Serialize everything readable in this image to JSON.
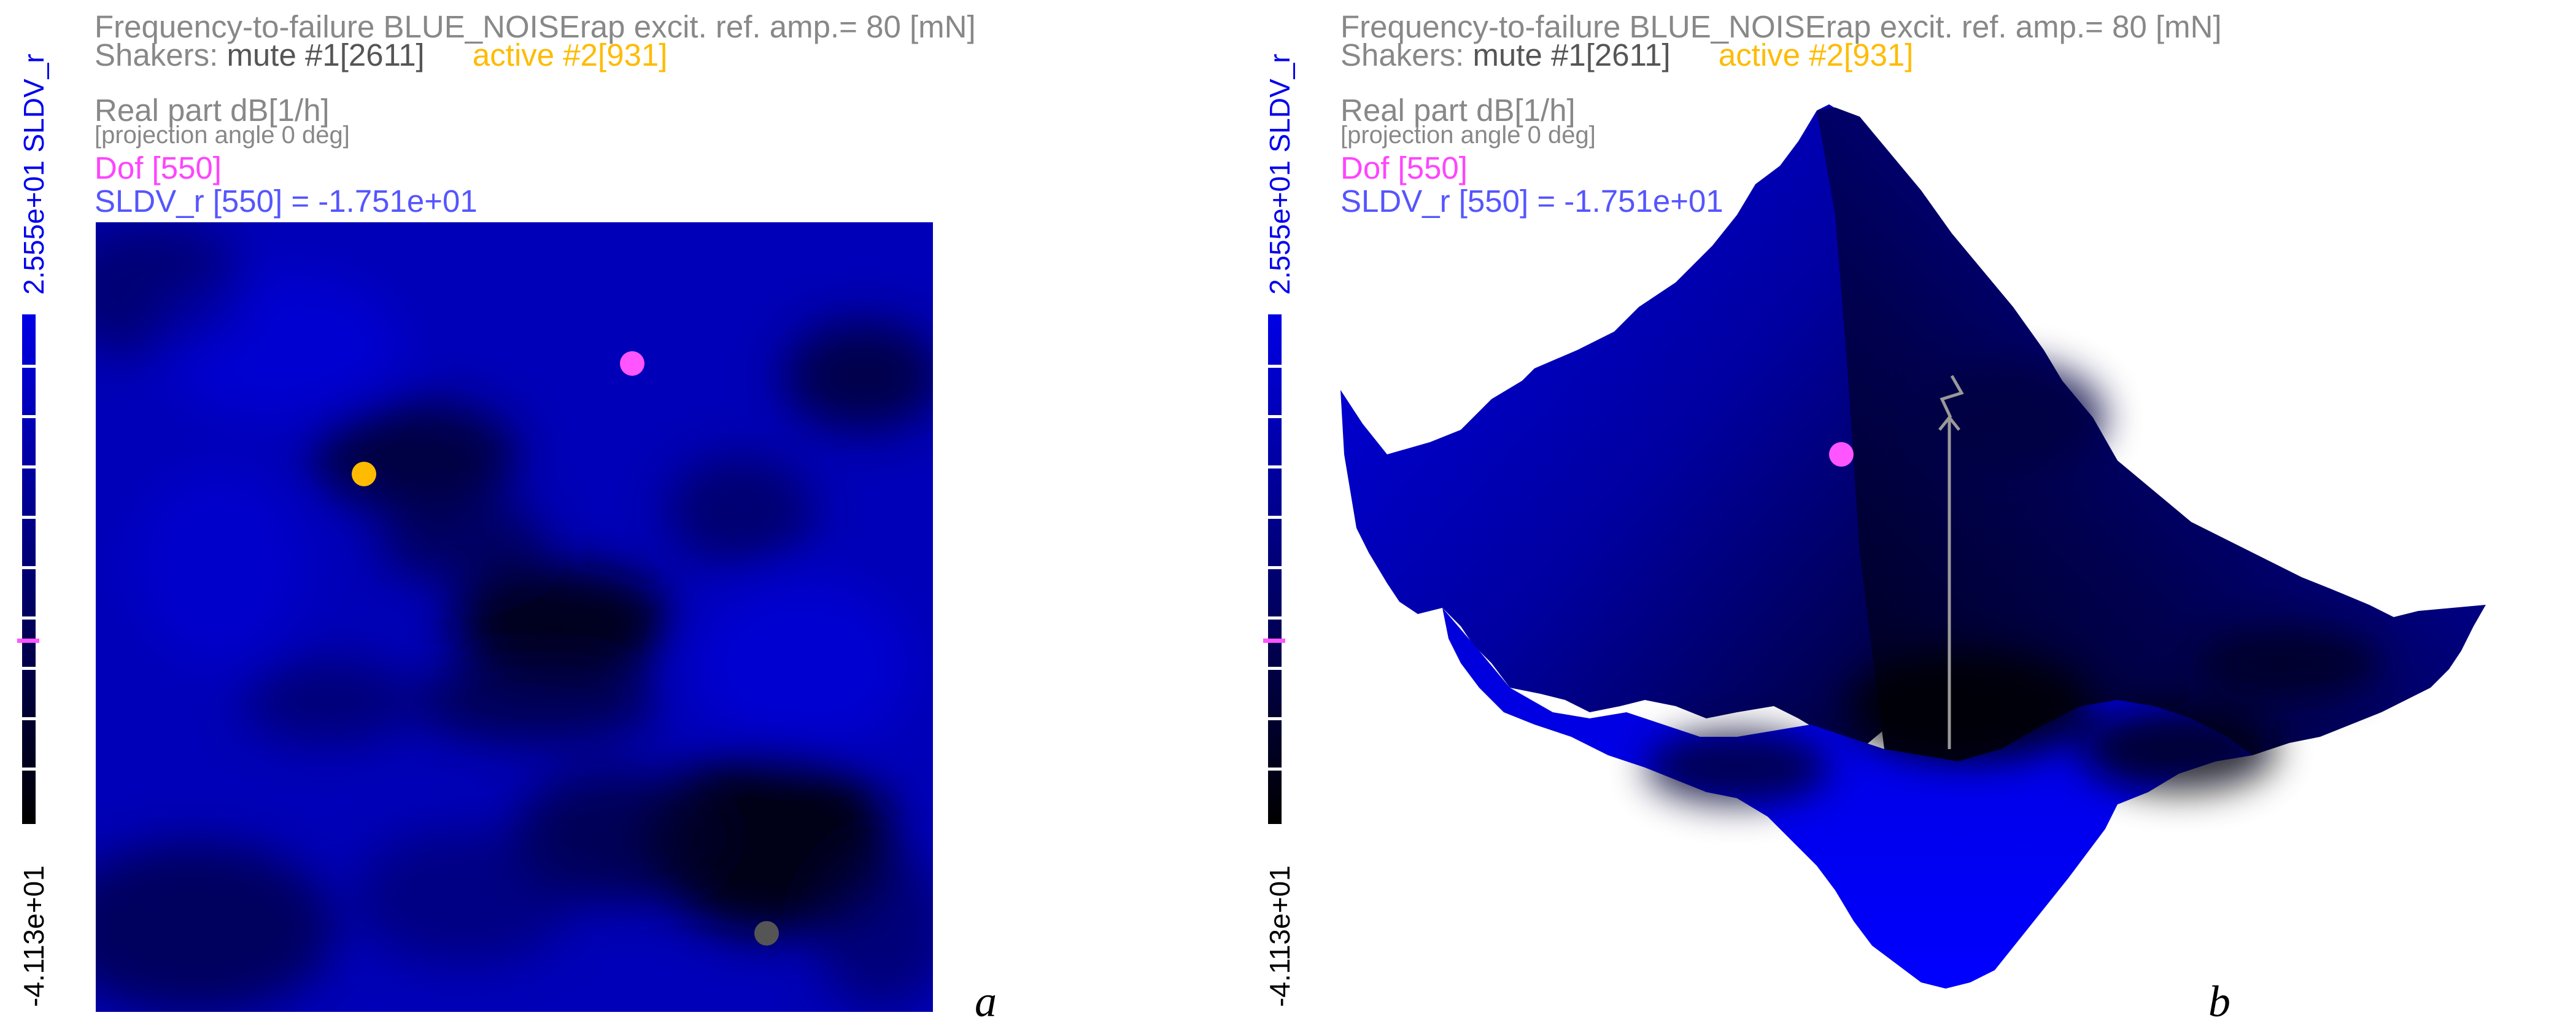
{
  "panels": [
    {
      "letter": "a",
      "title": "Frequency-to-failure BLUE_NOISErap excit. ref. amp.= 80 [mN]",
      "shakers_label": "Shakers:",
      "mute": "mute #1[2611]",
      "active": "active #2[931]",
      "quantity": "Real part dB[1/h]",
      "projection": "[projection angle 0 deg]",
      "dof": "Dof [550]",
      "readout": "SLDV_r [550] = -1.751e+01",
      "colorbar_max": "2.555e+01 SLDV_r",
      "colorbar_min": "-4.113e+01",
      "colorbar_marker_value": -17.51
    },
    {
      "letter": "b",
      "title": "Frequency-to-failure BLUE_NOISErap excit. ref. amp.= 80 [mN]",
      "shakers_label": "Shakers:",
      "mute": "mute #1[2611]",
      "active": "active #2[931]",
      "quantity": "Real part dB[1/h]",
      "projection": "[projection angle 0 deg]",
      "dof": "Dof [550]",
      "readout": "SLDV_r [550] = -1.751e+01",
      "colorbar_max": "2.555e+01 SLDV_r",
      "colorbar_min": "-4.113e+01",
      "colorbar_marker_value": -17.51
    }
  ],
  "colors": {
    "surface_high": "#0000ee",
    "surface_low": "#000000",
    "dof_marker": "#ff55ff",
    "active_shaker": "#ffbb00",
    "mute_shaker": "#555555",
    "readout": "#5555ff",
    "arrow": "#999999"
  }
}
